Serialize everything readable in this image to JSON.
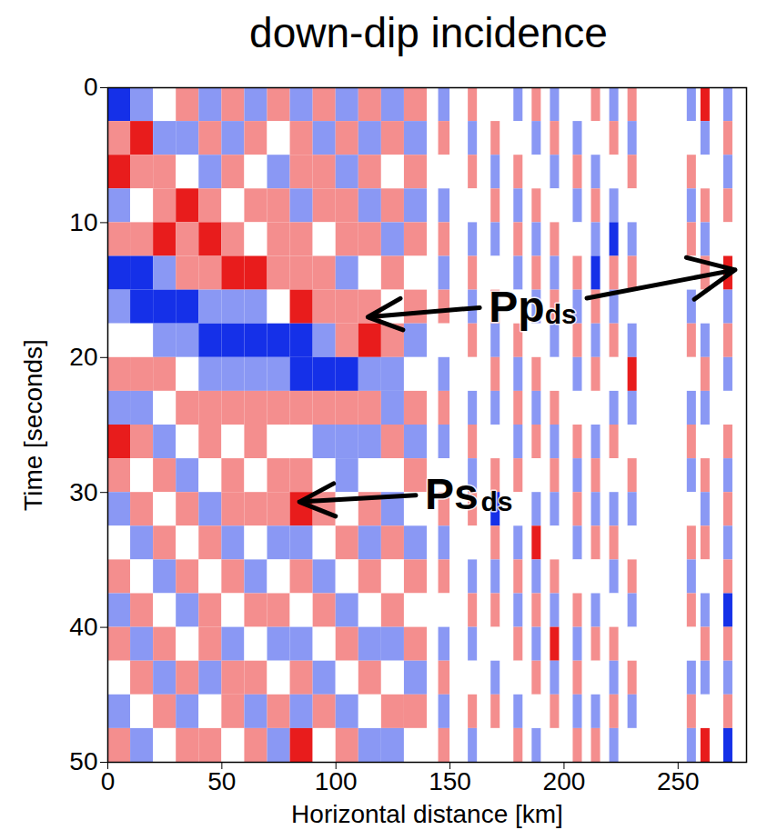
{
  "chart_data": {
    "type": "heatmap",
    "title": "down-dip incidence",
    "x_label": "Horizontal distance [km]",
    "y_label": "Time [seconds]",
    "xlim": [
      0,
      280
    ],
    "xticks": [
      0,
      50,
      100,
      150,
      200,
      250
    ],
    "ylim": [
      0,
      50
    ],
    "yticks": [
      0,
      10,
      20,
      30,
      40,
      50
    ],
    "color_range": [
      -2,
      2
    ],
    "ybins": [
      0,
      2.5,
      5,
      7.5,
      10,
      12.5,
      15,
      17.5,
      20,
      22.5,
      25,
      27.5,
      30,
      32.5,
      35,
      37.5,
      40,
      42.5,
      45,
      47.5,
      50
    ],
    "columns": [
      {
        "x1": 0,
        "x2": 10,
        "values": [
          -2,
          1,
          2,
          -1,
          1,
          -2,
          -1,
          0,
          1,
          -1,
          2,
          1,
          -1,
          0,
          1,
          -1,
          1,
          0,
          -1,
          1
        ]
      },
      {
        "x1": 10,
        "x2": 20,
        "values": [
          -1,
          2,
          1,
          0,
          1,
          -2,
          -2,
          0,
          1,
          -1,
          1,
          0,
          1,
          -1,
          0,
          1,
          -1,
          1,
          0,
          -1
        ]
      },
      {
        "x1": 20,
        "x2": 30,
        "values": [
          0,
          -1,
          1,
          1,
          2,
          -1,
          -2,
          -1,
          1,
          0,
          -1,
          1,
          0,
          1,
          -1,
          0,
          1,
          -1,
          1,
          0
        ]
      },
      {
        "x1": 30,
        "x2": 40,
        "values": [
          1,
          -1,
          0,
          2,
          1,
          1,
          -2,
          -1,
          0,
          1,
          0,
          -1,
          1,
          0,
          1,
          -1,
          0,
          1,
          -1,
          1
        ]
      },
      {
        "x1": 40,
        "x2": 50,
        "values": [
          -1,
          1,
          -1,
          1,
          2,
          1,
          -1,
          -2,
          -1,
          1,
          1,
          0,
          -1,
          1,
          0,
          1,
          1,
          -1,
          0,
          1
        ]
      },
      {
        "x1": 50,
        "x2": 60,
        "values": [
          1,
          -1,
          1,
          0,
          1,
          2,
          -1,
          -2,
          -1,
          1,
          0,
          1,
          1,
          -1,
          1,
          0,
          -1,
          1,
          1,
          0
        ]
      },
      {
        "x1": 60,
        "x2": 70,
        "values": [
          -1,
          1,
          0,
          1,
          0,
          2,
          -1,
          -2,
          -1,
          1,
          1,
          0,
          1,
          0,
          -1,
          1,
          0,
          1,
          -1,
          1
        ]
      },
      {
        "x1": 70,
        "x2": 80,
        "values": [
          1,
          0,
          -1,
          1,
          1,
          1,
          0,
          -2,
          -1,
          1,
          0,
          1,
          1,
          -1,
          0,
          1,
          -1,
          0,
          1,
          -1
        ]
      },
      {
        "x1": 80,
        "x2": 90,
        "values": [
          -1,
          1,
          1,
          -1,
          1,
          1,
          2,
          -2,
          -2,
          1,
          0,
          1,
          2,
          -1,
          1,
          0,
          -1,
          1,
          -1,
          2
        ]
      },
      {
        "x1": 90,
        "x2": 100,
        "values": [
          1,
          -1,
          1,
          1,
          0,
          1,
          1,
          -1,
          -2,
          1,
          -1,
          0,
          1,
          0,
          -1,
          1,
          0,
          -1,
          1,
          0
        ]
      },
      {
        "x1": 100,
        "x2": 110,
        "values": [
          -1,
          1,
          -1,
          1,
          1,
          -1,
          1,
          1,
          -2,
          1,
          -1,
          -1,
          0,
          1,
          0,
          -1,
          1,
          0,
          -1,
          1
        ]
      },
      {
        "x1": 110,
        "x2": 120,
        "values": [
          1,
          -1,
          1,
          -1,
          1,
          0,
          1,
          2,
          -1,
          1,
          -1,
          0,
          1,
          -1,
          1,
          0,
          -1,
          1,
          0,
          -1
        ]
      },
      {
        "x1": 120,
        "x2": 130,
        "values": [
          -1,
          1,
          0,
          1,
          -1,
          1,
          0,
          1,
          -1,
          -1,
          1,
          0,
          -1,
          1,
          0,
          1,
          -1,
          0,
          1,
          -1
        ]
      },
      {
        "x1": 130,
        "x2": 140,
        "values": [
          1,
          -1,
          1,
          -1,
          1,
          0,
          1,
          -1,
          0,
          1,
          -1,
          1,
          0,
          -1,
          1,
          0,
          1,
          -1,
          1,
          0
        ]
      },
      {
        "x1": 145,
        "x2": 150,
        "values": [
          -1,
          1,
          0,
          -1,
          1,
          -1,
          1,
          0,
          -1,
          1,
          -1,
          0,
          1,
          -1,
          1,
          0,
          -1,
          1,
          -1,
          1
        ]
      },
      {
        "x1": 158,
        "x2": 162,
        "values": [
          1,
          -1,
          1,
          0,
          -1,
          1,
          -1,
          1,
          0,
          -1,
          1,
          -1,
          1,
          0,
          -1,
          1,
          -1,
          0,
          1,
          -1
        ]
      },
      {
        "x1": 168,
        "x2": 172,
        "values": [
          0,
          1,
          -1,
          1,
          -1,
          0,
          1,
          -1,
          1,
          -1,
          0,
          1,
          -2,
          1,
          -1,
          1,
          0,
          -1,
          1,
          0
        ]
      },
      {
        "x1": 178,
        "x2": 182,
        "values": [
          -1,
          0,
          1,
          -1,
          1,
          -1,
          0,
          1,
          -1,
          1,
          -1,
          1,
          0,
          -1,
          1,
          -1,
          1,
          0,
          -1,
          1
        ]
      },
      {
        "x1": 186,
        "x2": 190,
        "values": [
          1,
          -1,
          0,
          1,
          -1,
          1,
          -1,
          0,
          1,
          -1,
          1,
          0,
          -1,
          2,
          -1,
          1,
          -1,
          1,
          0,
          -1
        ]
      },
      {
        "x1": 194,
        "x2": 198,
        "values": [
          -1,
          1,
          -1,
          0,
          1,
          -1,
          1,
          -1,
          0,
          1,
          -1,
          1,
          -1,
          0,
          1,
          -1,
          2,
          -1,
          1,
          0
        ]
      },
      {
        "x1": 204,
        "x2": 208,
        "values": [
          0,
          -1,
          1,
          -1,
          0,
          1,
          -1,
          1,
          -1,
          0,
          1,
          -1,
          1,
          -1,
          0,
          1,
          -1,
          1,
          -1,
          1
        ]
      },
      {
        "x1": 212,
        "x2": 216,
        "values": [
          1,
          0,
          -1,
          1,
          -1,
          -2,
          1,
          -1,
          1,
          0,
          -1,
          1,
          -1,
          1,
          0,
          -1,
          1,
          0,
          -1,
          1
        ]
      },
      {
        "x1": 220,
        "x2": 224,
        "values": [
          -1,
          1,
          0,
          -1,
          -2,
          1,
          -1,
          1,
          0,
          -1,
          1,
          0,
          -1,
          1,
          -1,
          0,
          1,
          -1,
          1,
          -1
        ]
      },
      {
        "x1": 228,
        "x2": 232,
        "values": [
          1,
          -1,
          1,
          0,
          -1,
          1,
          0,
          -1,
          2,
          -1,
          0,
          1,
          -1,
          0,
          1,
          -1,
          0,
          1,
          -1,
          0
        ]
      },
      {
        "x1": 254,
        "x2": 258,
        "values": [
          -1,
          0,
          1,
          -1,
          1,
          0,
          -1,
          1,
          0,
          -1,
          1,
          -1,
          0,
          1,
          -1,
          1,
          0,
          -1,
          1,
          -1
        ]
      },
      {
        "x1": 260,
        "x2": 264,
        "values": [
          2,
          -1,
          0,
          1,
          -1,
          1,
          0,
          -1,
          1,
          -1,
          0,
          1,
          -1,
          1,
          0,
          -1,
          1,
          -1,
          0,
          2
        ]
      },
      {
        "x1": 270,
        "x2": 274,
        "values": [
          -1,
          1,
          -1,
          1,
          0,
          2,
          -1,
          1,
          -1,
          0,
          1,
          -1,
          1,
          -1,
          1,
          -2,
          1,
          -1,
          1,
          -2
        ]
      }
    ],
    "annotations": [
      {
        "label": "Pp",
        "subscript": "ds",
        "text_x": 167,
        "text_y": 16.3,
        "arrows": [
          {
            "x1": 163,
            "y1": 16.3,
            "x2": 114,
            "y2": 17.0
          },
          {
            "x1": 210,
            "y1": 15.6,
            "x2": 275,
            "y2": 13.5
          }
        ]
      },
      {
        "label": "Ps",
        "subscript": "ds",
        "text_x": 139,
        "text_y": 30.2,
        "arrows": [
          {
            "x1": 135,
            "y1": 30.2,
            "x2": 84,
            "y2": 30.7
          }
        ]
      }
    ]
  }
}
